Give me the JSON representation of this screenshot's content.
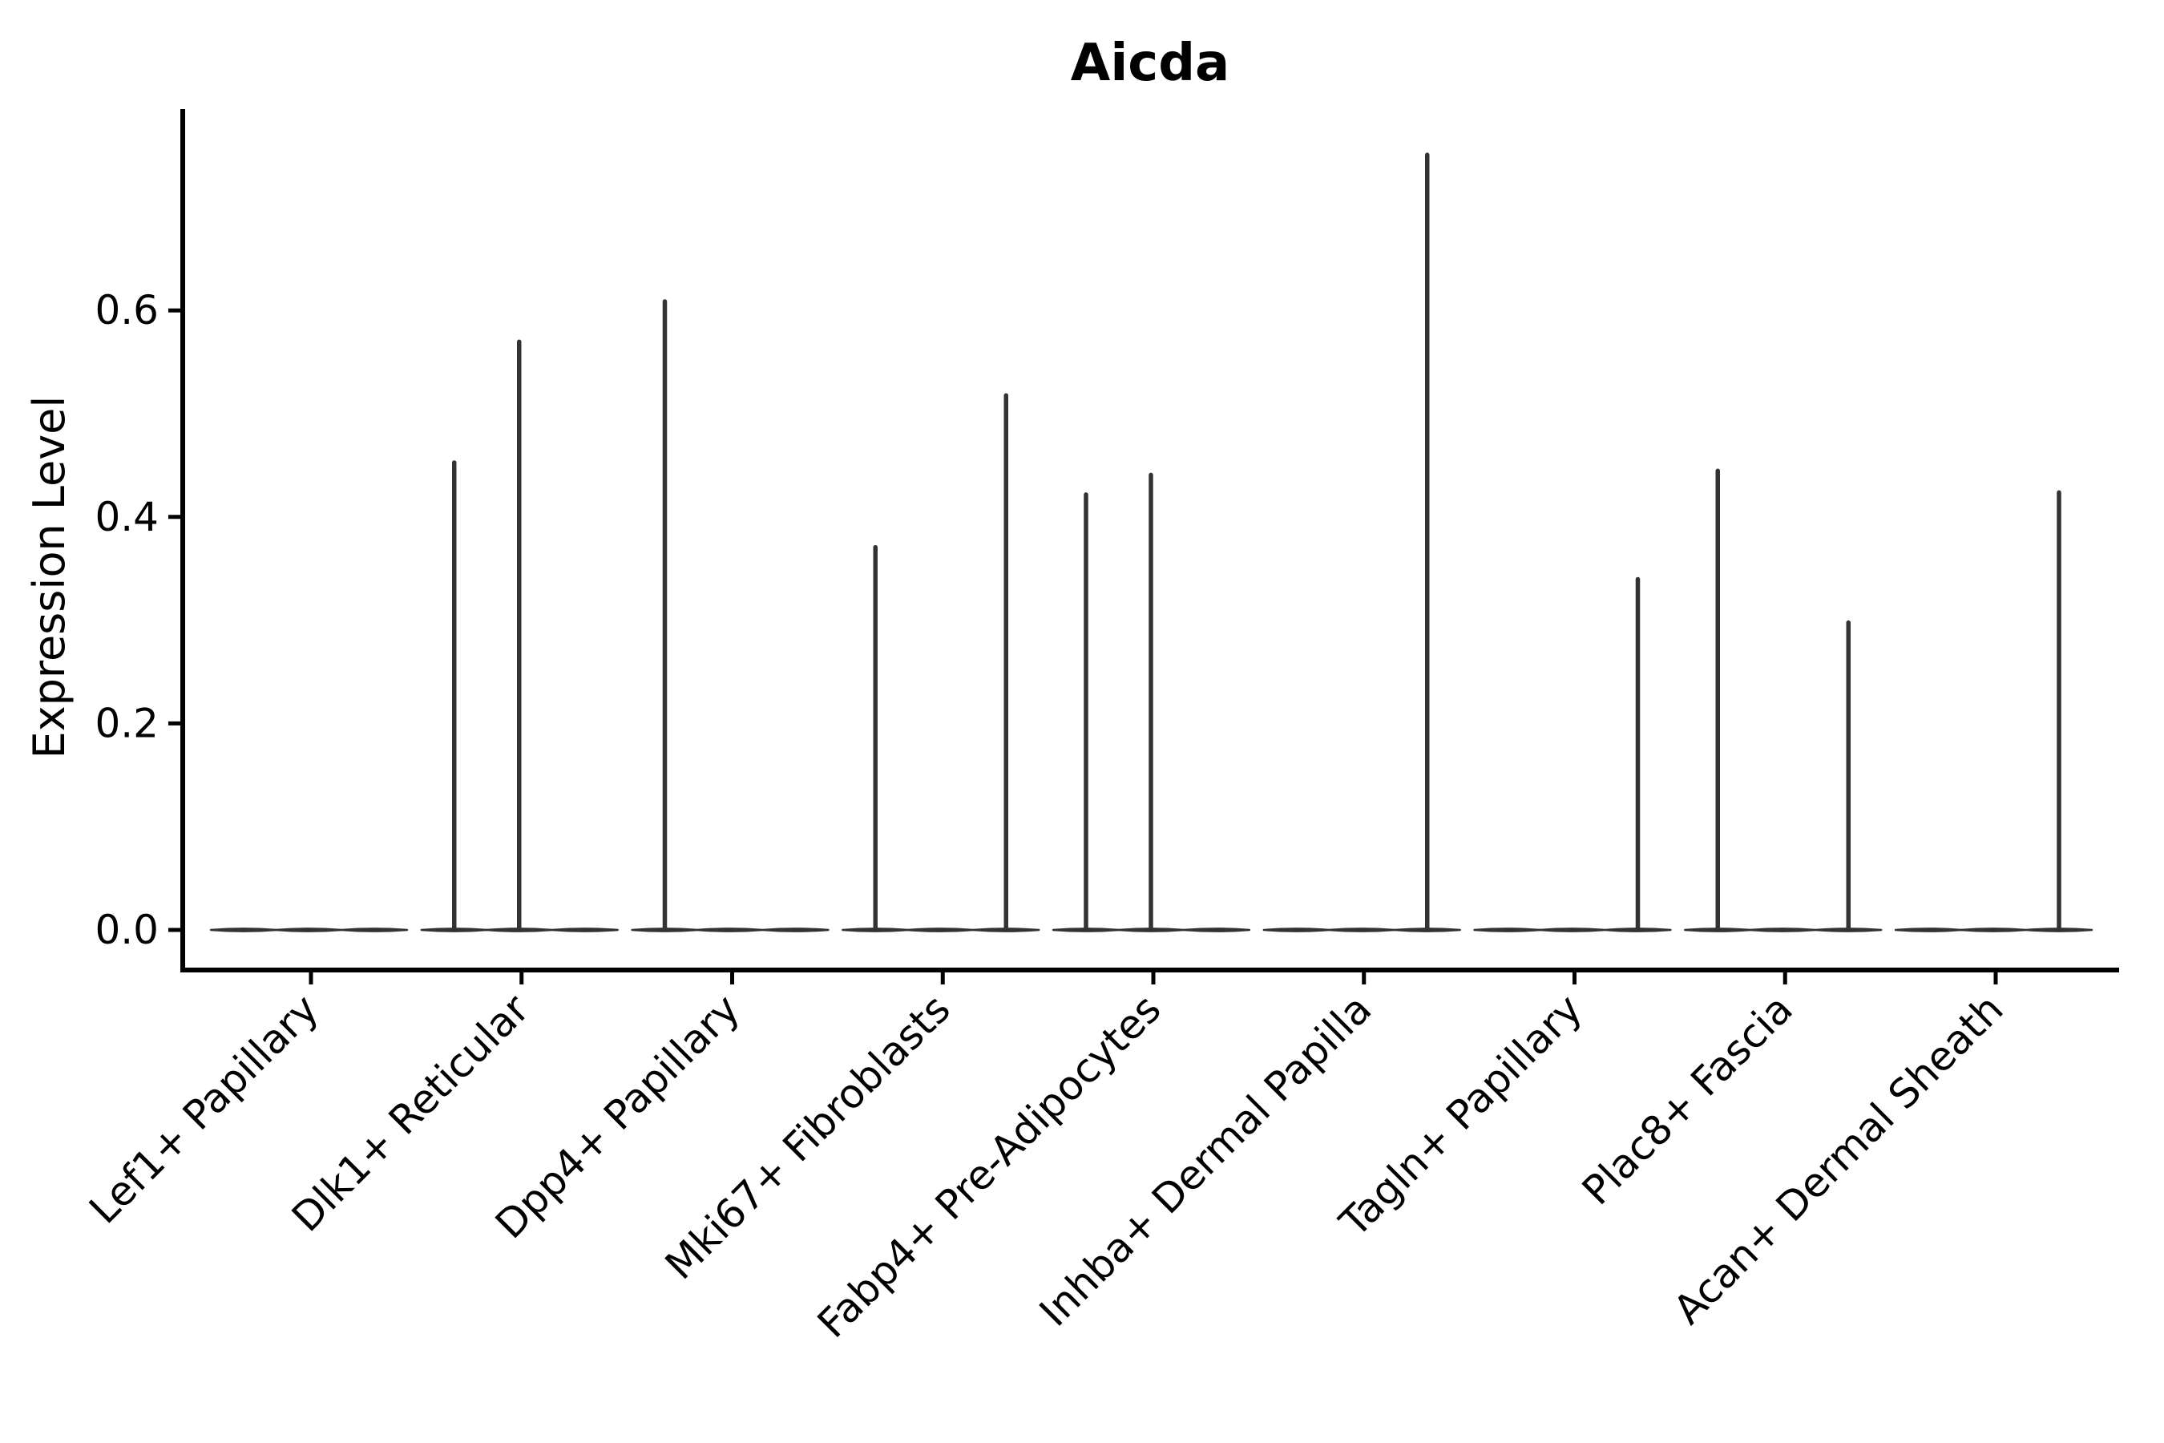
{
  "figure": {
    "title": "Aicda",
    "ylabel": "Expression Level"
  },
  "colors": {
    "background": "#ffffff",
    "axis": "#000000",
    "text": "#000000",
    "violin": "#333333"
  },
  "chart_data": {
    "type": "violin",
    "title": "Aicda",
    "xlabel": "",
    "ylabel": "Expression Level",
    "ylim": [
      -0.04,
      0.795
    ],
    "yticks": [
      0.0,
      0.2,
      0.4,
      0.6
    ],
    "ytick_labels": [
      "0.0",
      "0.2",
      "0.4",
      "0.6"
    ],
    "grid": false,
    "legend_position": "none",
    "violins_per_category": 3,
    "x_tick_rotation_deg": 45,
    "categories": [
      "Lef1+ Papillary",
      "Dlk1+ Reticular",
      "Dpp4+ Papillary",
      "Mki67+ Fibroblasts",
      "Fabp4+ Pre-Adipocytes",
      "Inhba+ Dermal Papilla",
      "Tagln+ Papillary",
      "Plac8+ Fascia",
      "Acan+ Dermal Sheath"
    ],
    "series": [
      {
        "category": "Lef1+ Papillary",
        "violin_max": [
          0,
          0,
          0
        ]
      },
      {
        "category": "Dlk1+ Reticular",
        "violin_max": [
          0.455,
          0.572,
          0
        ]
      },
      {
        "category": "Dpp4+ Papillary",
        "violin_max": [
          0.611,
          0,
          0
        ]
      },
      {
        "category": "Mki67+ Fibroblasts",
        "violin_max": [
          0.373,
          0,
          0.52
        ]
      },
      {
        "category": "Fabp4+ Pre-Adipocytes",
        "violin_max": [
          0.424,
          0.443,
          0
        ]
      },
      {
        "category": "Inhba+ Dermal Papilla",
        "violin_max": [
          0,
          0,
          0.753
        ]
      },
      {
        "category": "Tagln+ Papillary",
        "violin_max": [
          0,
          0,
          0.342
        ]
      },
      {
        "category": "Plac8+ Fascia",
        "violin_max": [
          0.447,
          0,
          0.3
        ]
      },
      {
        "category": "Acan+ Dermal Sheath",
        "violin_max": [
          0,
          0,
          0.426
        ]
      }
    ],
    "baseline_value": 0.0
  }
}
